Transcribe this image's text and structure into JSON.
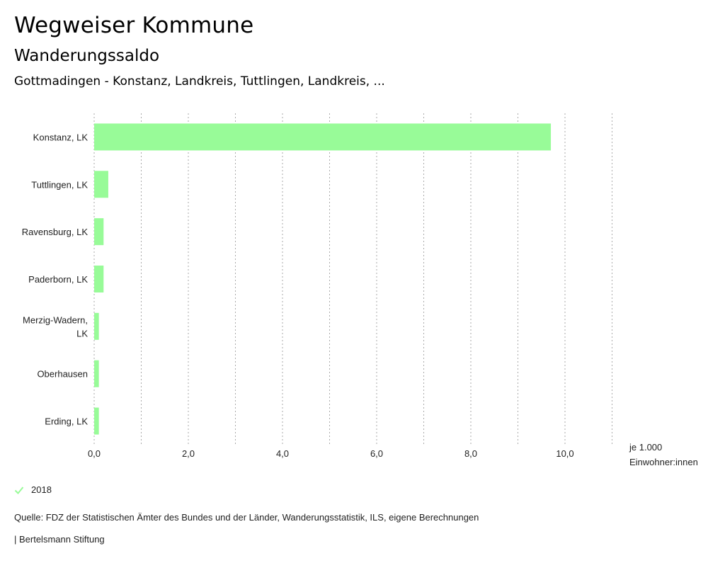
{
  "header": {
    "title": "Wegweiser Kommune",
    "subtitle": "Wanderungssaldo",
    "region": "Gottmadingen - Konstanz, Landkreis, Tuttlingen, Landkreis, ..."
  },
  "chart_data": {
    "type": "bar",
    "orientation": "horizontal",
    "categories": [
      [
        "Konstanz, LK"
      ],
      [
        "Tuttlingen, LK"
      ],
      [
        "Ravensburg, LK"
      ],
      [
        "Paderborn, LK"
      ],
      [
        "Merzig-Wadern,",
        "LK"
      ],
      [
        "Oberhausen"
      ],
      [
        "Erding, LK"
      ]
    ],
    "series": [
      {
        "name": "2018",
        "values": [
          9.7,
          0.3,
          0.2,
          0.2,
          0.1,
          0.1,
          0.1
        ]
      }
    ],
    "xlim": [
      0,
      11
    ],
    "xticks": [
      0,
      2,
      4,
      6,
      8,
      10
    ],
    "xtick_labels": [
      "0,0",
      "2,0",
      "4,0",
      "6,0",
      "8,0",
      "10,0"
    ],
    "gridlines": [
      0,
      1,
      2,
      3,
      4,
      5,
      6,
      7,
      8,
      9,
      10,
      11
    ],
    "xlabel": [
      "je 1.000",
      "Einwohner:innen"
    ],
    "bar_color": "#98fb98",
    "grid_color": "#aaaaaa"
  },
  "legend": {
    "label": "2018",
    "color": "#98fb98"
  },
  "footer": {
    "source": "Quelle: FDZ der Statistischen Ämter des Bundes und der Länder, Wanderungsstatistik, ILS, eigene Berechnungen",
    "brand": "| Bertelsmann Stiftung"
  }
}
